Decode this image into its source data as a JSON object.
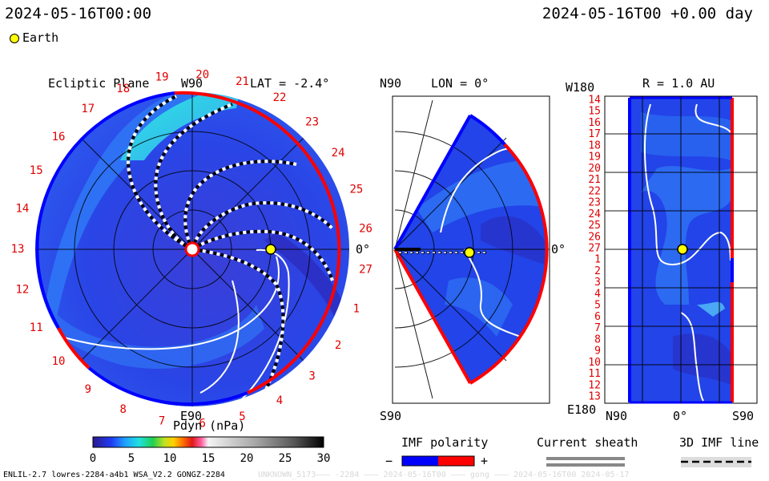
{
  "header": {
    "left_time": "2024-05-16T00:00",
    "right_time": "2024-05-16T00 +0.00 day"
  },
  "legend": {
    "earth_label": "Earth",
    "earth_color": "#ffff00"
  },
  "panels": {
    "ecliptic": {
      "title": "Ecliptic Plane",
      "lat_label": "LAT = -2.4°",
      "top_label": "W90",
      "bottom_label": "E90",
      "right_label": "0°"
    },
    "meridional": {
      "top_left": "N90",
      "lon_label": "LON = 0°",
      "right_label": "0°",
      "bottom_left": "S90"
    },
    "radial": {
      "top_left": "W180",
      "r_label": "R = 1.0 AU",
      "bottom_left": "E180",
      "x_left": "N90",
      "x_mid": "0°",
      "x_right": "S90"
    }
  },
  "colorbar": {
    "title": "Pdyn (nPa)",
    "ticks": [
      "0",
      "5",
      "10",
      "15",
      "20",
      "25",
      "30"
    ],
    "range": [
      0,
      30
    ]
  },
  "imf": {
    "title": "IMF polarity",
    "minus": "−",
    "plus": "+",
    "negative_color": "#0000ff",
    "positive_color": "#ff0000"
  },
  "current_sheath": {
    "title": "Current sheath"
  },
  "imf_line": {
    "title": "3D IMF line"
  },
  "footer": {
    "model": "ENLIL-2.7 lowres-2284-a4b1 WSA_V2.2 GONGZ-2284",
    "run_id": "UNKNOWN_5173––– -2284 ––– 2024-05-16T00 ––– gong ––– 2024-05-16T00  2024-05-17"
  },
  "chart_data": [
    {
      "type": "heatmap",
      "title": "Ecliptic Plane",
      "subtitle": "LAT = -2.4°",
      "quantity": "Pdyn (nPa)",
      "carrington_ticks": [
        "19",
        "20",
        "21",
        "22",
        "23",
        "24",
        "25",
        "26",
        "27",
        "1",
        "2",
        "3",
        "4",
        "5",
        "6",
        "7",
        "8",
        "9",
        "10",
        "11",
        "12",
        "13",
        "14",
        "15",
        "16",
        "17",
        "18"
      ],
      "earth_position": {
        "longitude_deg": 0,
        "radius_au": 1.0
      },
      "colorbar_range": [
        0,
        30
      ]
    },
    {
      "type": "heatmap",
      "title": "LON = 0°",
      "latitude_range": [
        "N90",
        "S90"
      ],
      "colorbar_range": [
        0,
        30
      ]
    },
    {
      "type": "heatmap",
      "title": "R = 1.0 AU",
      "y_tick_labels": [
        "14",
        "15",
        "16",
        "17",
        "18",
        "19",
        "20",
        "21",
        "22",
        "23",
        "24",
        "25",
        "26",
        "27",
        "1",
        "2",
        "3",
        "4",
        "5",
        "6",
        "7",
        "8",
        "9",
        "10",
        "11",
        "12",
        "13"
      ],
      "y_range_labels": [
        "W180",
        "E180"
      ],
      "x_tick_labels": [
        "N90",
        "0°",
        "S90"
      ],
      "colorbar_range": [
        0,
        30
      ]
    }
  ]
}
